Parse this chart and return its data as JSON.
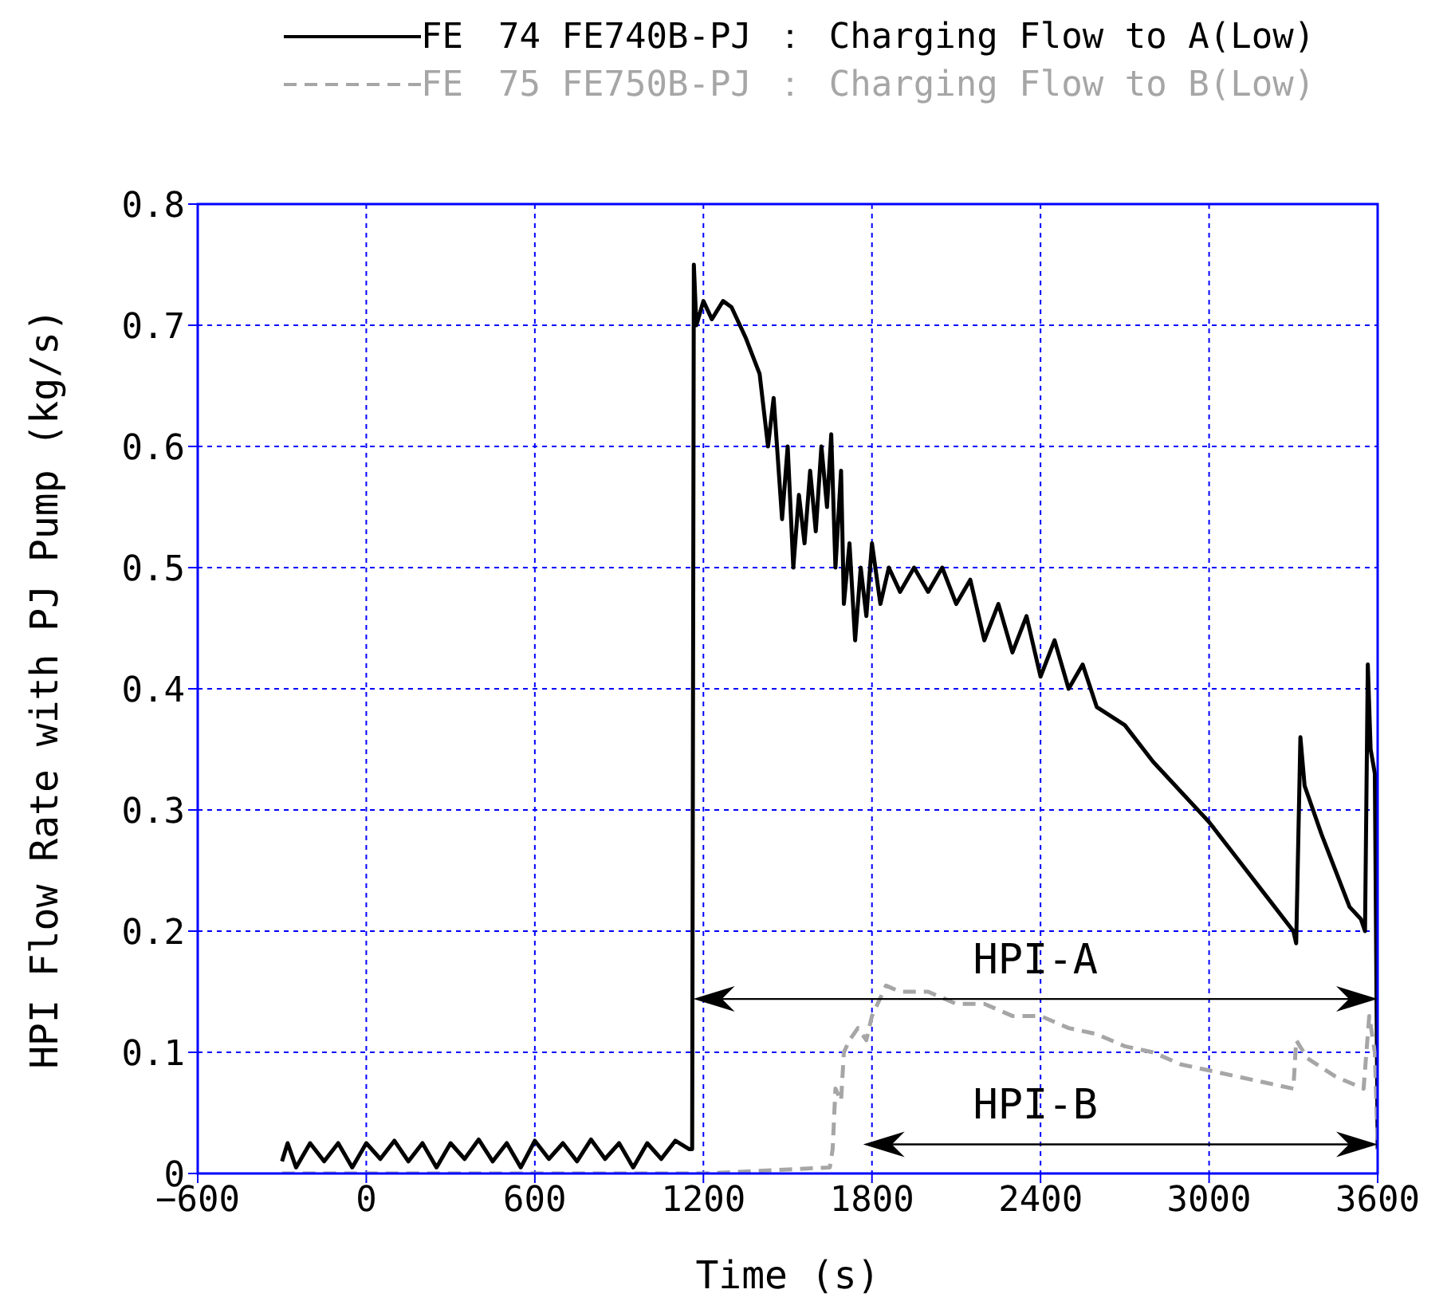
{
  "chart_data": {
    "type": "line",
    "xlabel": "Time (s)",
    "ylabel": "HPI Flow Rate with PJ Pump (kg/s)",
    "xlim": [
      -600,
      3600
    ],
    "xticks": [
      -600,
      0,
      600,
      1200,
      1800,
      2400,
      3000,
      3600
    ],
    "ylim": [
      0,
      0.8
    ],
    "yticks": [
      0,
      0.1,
      0.2,
      0.3,
      0.4,
      0.5,
      0.6,
      0.7,
      0.8
    ],
    "grid": true,
    "legend": "top",
    "series": [
      {
        "name": "FE　74 FE740B-PJ ： Charging Flow to A(Low)",
        "color": "#000000",
        "line_style": "solid",
        "x": [
          -300,
          -280,
          -250,
          -200,
          -150,
          -100,
          -50,
          0,
          50,
          100,
          150,
          200,
          250,
          300,
          350,
          400,
          450,
          500,
          550,
          600,
          650,
          700,
          750,
          800,
          850,
          900,
          950,
          1000,
          1050,
          1100,
          1150,
          1160,
          1166,
          1175,
          1200,
          1230,
          1270,
          1300,
          1350,
          1400,
          1430,
          1450,
          1480,
          1500,
          1520,
          1540,
          1560,
          1580,
          1600,
          1620,
          1640,
          1655,
          1670,
          1690,
          1700,
          1720,
          1740,
          1760,
          1780,
          1800,
          1830,
          1860,
          1900,
          1950,
          2000,
          2050,
          2100,
          2150,
          2200,
          2250,
          2300,
          2350,
          2400,
          2450,
          2500,
          2550,
          2600,
          2700,
          2800,
          2900,
          3000,
          3100,
          3200,
          3300,
          3310,
          3325,
          3340,
          3400,
          3450,
          3500,
          3540,
          3555,
          3565,
          3575,
          3590,
          3600
        ],
        "values": [
          0.01,
          0.025,
          0.005,
          0.025,
          0.01,
          0.025,
          0.005,
          0.025,
          0.012,
          0.027,
          0.01,
          0.025,
          0.005,
          0.025,
          0.012,
          0.028,
          0.01,
          0.025,
          0.005,
          0.027,
          0.012,
          0.025,
          0.01,
          0.028,
          0.012,
          0.025,
          0.005,
          0.025,
          0.012,
          0.027,
          0.02,
          0.02,
          0.75,
          0.7,
          0.72,
          0.705,
          0.72,
          0.715,
          0.69,
          0.66,
          0.6,
          0.64,
          0.54,
          0.6,
          0.5,
          0.56,
          0.52,
          0.58,
          0.53,
          0.6,
          0.55,
          0.61,
          0.5,
          0.58,
          0.47,
          0.52,
          0.44,
          0.5,
          0.46,
          0.52,
          0.47,
          0.5,
          0.48,
          0.5,
          0.48,
          0.5,
          0.47,
          0.49,
          0.44,
          0.47,
          0.43,
          0.46,
          0.41,
          0.44,
          0.4,
          0.42,
          0.385,
          0.37,
          0.34,
          0.315,
          0.29,
          0.26,
          0.23,
          0.2,
          0.19,
          0.36,
          0.32,
          0.28,
          0.25,
          0.22,
          0.21,
          0.2,
          0.42,
          0.35,
          0.33,
          0.02
        ]
      },
      {
        "name": "FE　75 FE750B-PJ ： Charging Flow to B(Low)",
        "color": "#a6a6a6",
        "line_style": "dashed",
        "x": [
          -300,
          0,
          600,
          1200,
          1650,
          1660,
          1670,
          1690,
          1700,
          1720,
          1750,
          1780,
          1800,
          1830,
          1850,
          1900,
          2000,
          2100,
          2200,
          2300,
          2400,
          2500,
          2600,
          2700,
          2800,
          2900,
          3000,
          3100,
          3200,
          3300,
          3310,
          3350,
          3450,
          3550,
          3570,
          3590,
          3600
        ],
        "values": [
          0,
          0,
          0,
          0,
          0.005,
          0.02,
          0.07,
          0.06,
          0.1,
          0.11,
          0.12,
          0.11,
          0.13,
          0.145,
          0.155,
          0.15,
          0.15,
          0.14,
          0.14,
          0.13,
          0.13,
          0.12,
          0.115,
          0.105,
          0.1,
          0.09,
          0.085,
          0.08,
          0.075,
          0.07,
          0.11,
          0.095,
          0.08,
          0.07,
          0.13,
          0.1,
          0.02
        ]
      }
    ],
    "annotations": [
      "HPI-A",
      "HPI-B"
    ]
  }
}
